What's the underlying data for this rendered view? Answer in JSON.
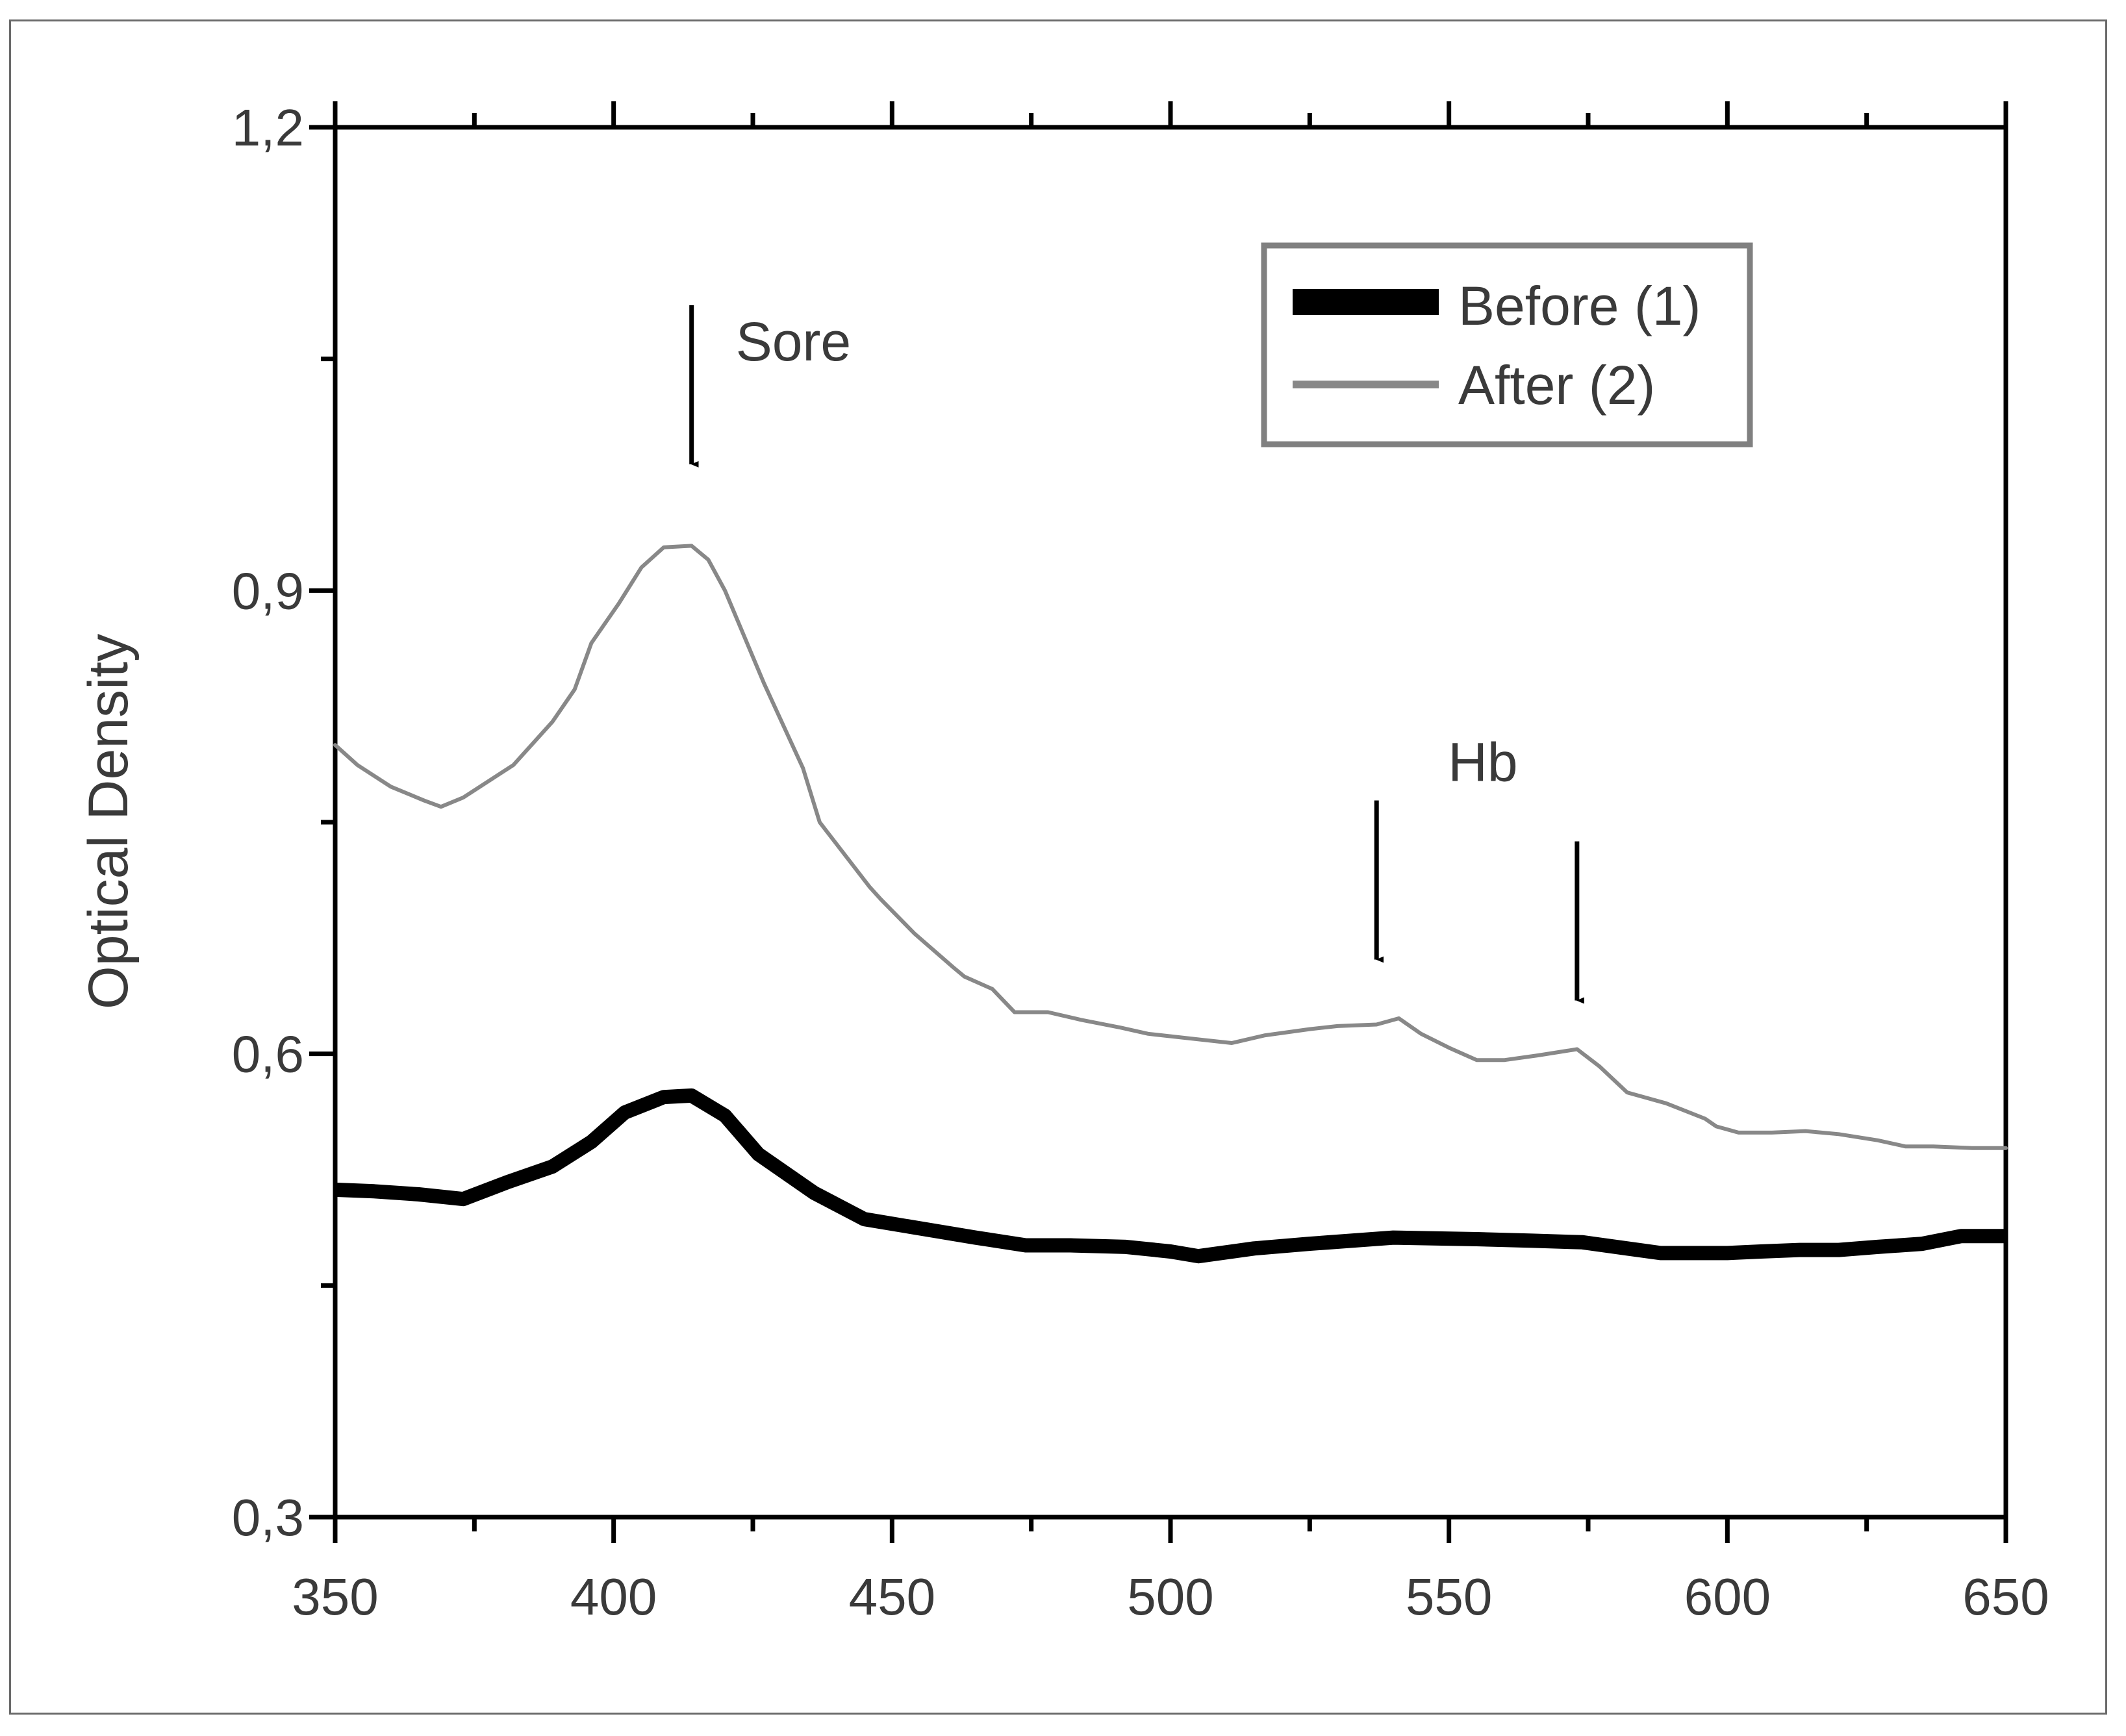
{
  "chart_data": {
    "type": "line",
    "title": "",
    "xlabel": "",
    "ylabel": "Optical Density",
    "xlim": [
      350,
      650
    ],
    "ylim": [
      0.3,
      1.2
    ],
    "x_ticks": [
      350,
      400,
      450,
      500,
      550,
      600,
      650
    ],
    "x_tick_labels": [
      "350",
      "400",
      "450",
      "500",
      "550",
      "600",
      "650"
    ],
    "y_ticks": [
      0.3,
      0.6,
      0.9,
      1.2
    ],
    "y_tick_labels": [
      "0,3",
      "0,6",
      "0,9",
      "1,2"
    ],
    "legend_position": "top-right",
    "series": [
      {
        "name": "Before (1)",
        "color": "#000000",
        "style": "thick",
        "x": [
          350,
          357,
          365,
          373,
          381,
          389,
          396,
          402,
          409,
          414,
          420,
          426,
          436,
          445,
          455,
          465,
          474,
          482,
          492,
          500,
          505,
          515,
          525,
          540,
          555,
          565,
          574,
          582,
          588,
          595,
          600,
          606,
          613,
          620,
          627,
          635,
          642,
          650
        ],
        "y": [
          0.512,
          0.511,
          0.509,
          0.506,
          0.517,
          0.527,
          0.543,
          0.562,
          0.572,
          0.573,
          0.56,
          0.535,
          0.51,
          0.493,
          0.487,
          0.481,
          0.476,
          0.476,
          0.475,
          0.472,
          0.469,
          0.474,
          0.477,
          0.481,
          0.48,
          0.479,
          0.478,
          0.474,
          0.471,
          0.471,
          0.471,
          0.472,
          0.473,
          0.473,
          0.475,
          0.477,
          0.482,
          0.482
        ]
      },
      {
        "name": "After (2)",
        "color": "#888888",
        "style": "thin",
        "x": [
          350,
          354,
          360,
          366,
          369,
          373,
          382,
          389,
          393,
          396,
          401,
          405,
          409,
          414,
          417,
          420,
          427,
          434,
          437,
          446,
          448,
          454,
          461,
          463,
          468,
          472,
          478,
          484,
          491,
          496,
          506,
          511,
          517,
          525,
          530,
          537,
          541,
          545,
          550,
          555,
          560,
          566,
          573,
          577,
          582,
          589,
          596,
          598,
          602,
          608,
          614,
          620,
          627,
          632,
          637,
          644,
          650
        ],
        "y": [
          0.8,
          0.787,
          0.773,
          0.764,
          0.76,
          0.766,
          0.787,
          0.815,
          0.836,
          0.866,
          0.892,
          0.915,
          0.928,
          0.929,
          0.92,
          0.9,
          0.84,
          0.785,
          0.75,
          0.708,
          0.7,
          0.678,
          0.656,
          0.65,
          0.642,
          0.627,
          0.627,
          0.622,
          0.617,
          0.613,
          0.609,
          0.607,
          0.612,
          0.616,
          0.618,
          0.619,
          0.623,
          0.613,
          0.604,
          0.596,
          0.596,
          0.599,
          0.603,
          0.592,
          0.575,
          0.568,
          0.558,
          0.553,
          0.549,
          0.549,
          0.55,
          0.548,
          0.544,
          0.54,
          0.54,
          0.539,
          0.539
        ]
      }
    ],
    "annotations": [
      {
        "text": "Sore",
        "arrow_x": 414,
        "arrow_y": 0.925
      },
      {
        "text": "Hb",
        "arrow_x": 537,
        "arrow_y": 0.619,
        "second_arrow_x": 573,
        "second_arrow_y": 0.603
      }
    ]
  }
}
